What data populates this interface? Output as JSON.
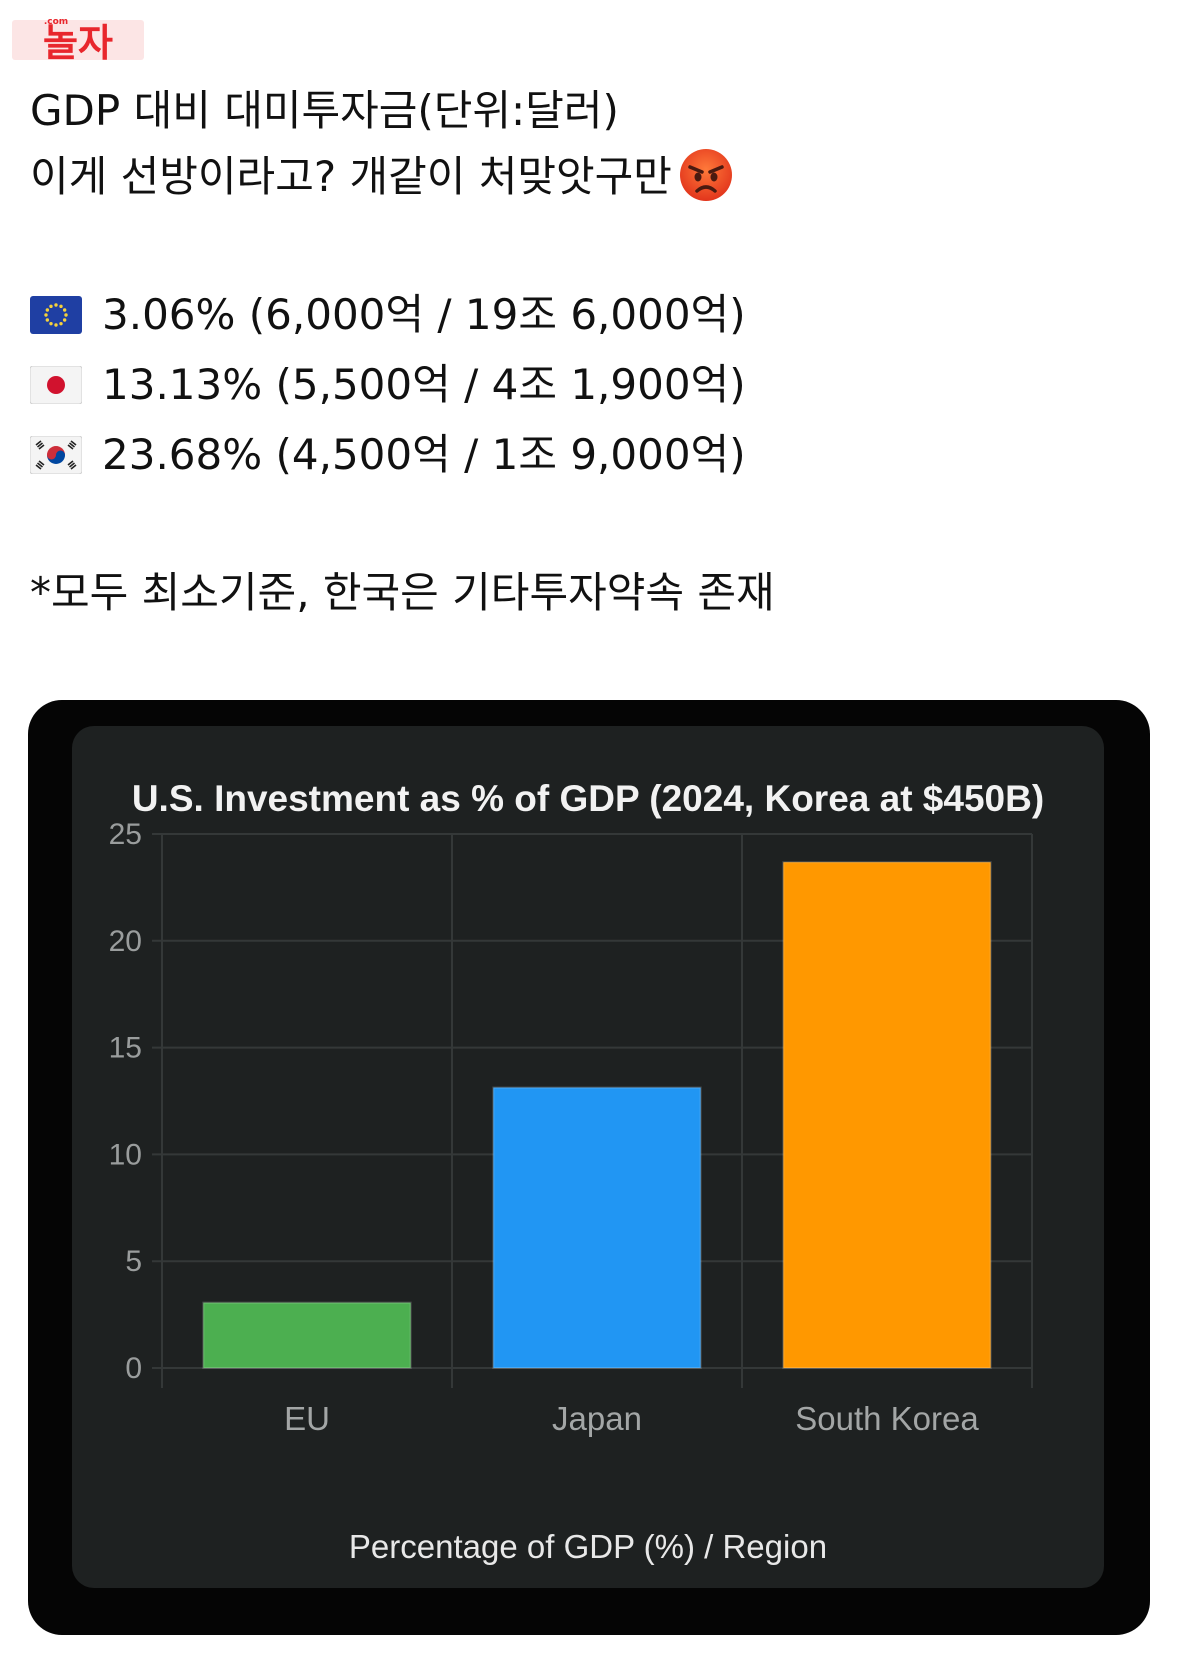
{
  "watermark": {
    "text": "놀자",
    "small_text": ".com",
    "color": "#e8262c"
  },
  "post": {
    "line1": "GDP 대비 대미투자금(단위:달러)",
    "line2": "이게 선방이라고? 개같이 처맞앗구만",
    "line2_emoji": "angry-face-icon",
    "rows": [
      {
        "flag": "eu-flag-icon",
        "text": "3.06% (6,000억 / 19조 6,000억)"
      },
      {
        "flag": "japan-flag-icon",
        "text": "13.13% (5,500억 / 4조 1,900억)"
      },
      {
        "flag": "korea-flag-icon",
        "text": "23.68% (4,500억 / 1조 9,000억)"
      }
    ],
    "note": "*모두 최소기준, 한국은 기타투자약속 존재"
  },
  "chart_data": {
    "type": "bar",
    "title": "U.S. Investment as % of GDP (2024, Korea at $450B)",
    "xlabel": "Percentage of GDP (%) / Region",
    "ylabel": "",
    "categories": [
      "EU",
      "Japan",
      "South Korea"
    ],
    "values": [
      3.06,
      13.13,
      23.68
    ],
    "colors": [
      "#4caf50",
      "#2196f3",
      "#ff9800"
    ],
    "ylim": [
      0,
      25
    ],
    "yticks": [
      0,
      5,
      10,
      15,
      20,
      25
    ],
    "grid": true,
    "background": "#1e2121"
  }
}
